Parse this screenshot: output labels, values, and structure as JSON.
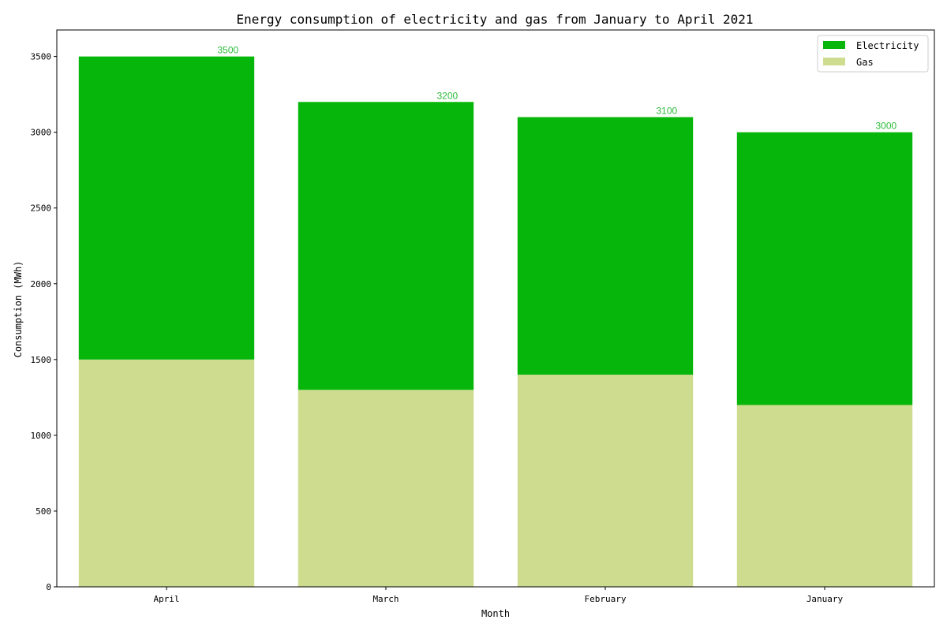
{
  "chart_data": {
    "type": "bar",
    "stacked": true,
    "title": "Energy consumption of electricity and gas from January to April 2021",
    "xlabel": "Month",
    "ylabel": "Consumption (MWh)",
    "categories": [
      "April",
      "March",
      "February",
      "January"
    ],
    "series": [
      {
        "name": "Gas",
        "values": [
          1500,
          1300,
          1400,
          1200
        ],
        "color": "#cddc8e"
      },
      {
        "name": "Electricity",
        "values": [
          2000,
          1900,
          1700,
          1800
        ],
        "color": "#07b60a"
      }
    ],
    "totals": [
      3500,
      3200,
      3100,
      3000
    ],
    "total_label_color": "#2dbb3a",
    "ylim": [
      0,
      3675
    ],
    "yticks": [
      0,
      500,
      1000,
      1500,
      2000,
      2500,
      3000,
      3500
    ],
    "legend": {
      "position": "top-right",
      "entries": [
        {
          "label": "Electricity",
          "color": "#07b60a"
        },
        {
          "label": "Gas",
          "color": "#cddc8e"
        }
      ]
    },
    "grid": false
  }
}
